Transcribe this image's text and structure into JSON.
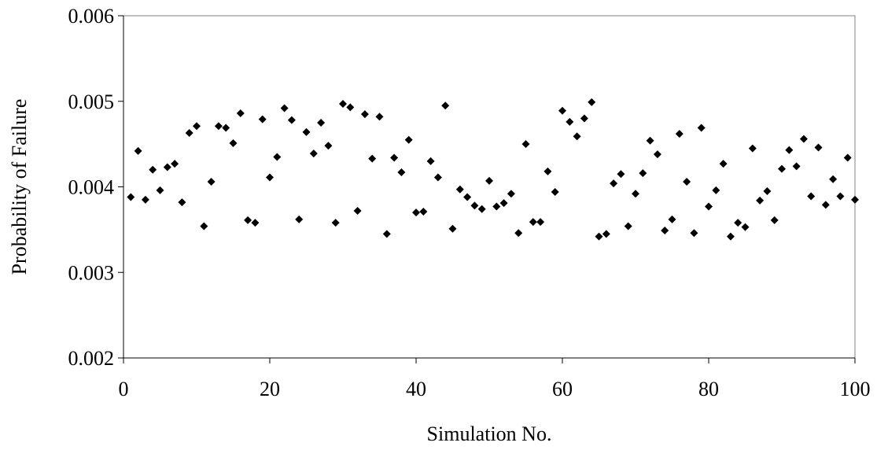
{
  "chart_data": {
    "type": "scatter",
    "title": "",
    "xlabel": "Simulation No.",
    "ylabel": "Probability of Failure",
    "xlim": [
      0,
      100
    ],
    "ylim": [
      0.002,
      0.006
    ],
    "xticks": [
      "0",
      "20",
      "40",
      "60",
      "80",
      "100"
    ],
    "yticks": [
      "0.002",
      "0.003",
      "0.004",
      "0.005",
      "0.006"
    ],
    "grid": false,
    "legend": "none",
    "marker": "diamond",
    "colors": {
      "marker": "#000000",
      "plot_border": "#808080",
      "axis": "#000000"
    },
    "series": [
      {
        "x": [
          1,
          2,
          3,
          4,
          5,
          6,
          7,
          8,
          9,
          10,
          11,
          12,
          13,
          14,
          15,
          16,
          17,
          18,
          19,
          20,
          21,
          22,
          23,
          24,
          25,
          26,
          27,
          28,
          29,
          30,
          31,
          32,
          33,
          34,
          35,
          36,
          37,
          38,
          39,
          40,
          41,
          42,
          43,
          44,
          45,
          46,
          47,
          48,
          49,
          50,
          51,
          52,
          53,
          54,
          55,
          56,
          57,
          58,
          59,
          60,
          61,
          62,
          63,
          64,
          65,
          66,
          67,
          68,
          69,
          70,
          71,
          72,
          73,
          74,
          75,
          76,
          77,
          78,
          79,
          80,
          81,
          82,
          83,
          84,
          85,
          86,
          87,
          88,
          89,
          90,
          91,
          92,
          93,
          94,
          95,
          96,
          97,
          98,
          99,
          100
        ],
        "y": [
          0.00388,
          0.00442,
          0.00385,
          0.0042,
          0.00396,
          0.00423,
          0.00427,
          0.00382,
          0.00463,
          0.00471,
          0.00354,
          0.00406,
          0.00471,
          0.00469,
          0.00451,
          0.00486,
          0.00361,
          0.00358,
          0.00479,
          0.00411,
          0.00435,
          0.00492,
          0.00478,
          0.00362,
          0.00464,
          0.00439,
          0.00475,
          0.00448,
          0.00358,
          0.00497,
          0.00493,
          0.00372,
          0.00485,
          0.00433,
          0.00482,
          0.00345,
          0.00434,
          0.00417,
          0.00455,
          0.0037,
          0.00371,
          0.0043,
          0.00411,
          0.00495,
          0.00351,
          0.00397,
          0.00388,
          0.00378,
          0.00374,
          0.00407,
          0.00377,
          0.00381,
          0.00392,
          0.00346,
          0.0045,
          0.00359,
          0.00359,
          0.00418,
          0.00394,
          0.00489,
          0.00476,
          0.00459,
          0.0048,
          0.00499,
          0.00342,
          0.00345,
          0.00404,
          0.00415,
          0.00354,
          0.00392,
          0.00416,
          0.00454,
          0.00438,
          0.00349,
          0.00362,
          0.00462,
          0.00406,
          0.00346,
          0.00469,
          0.00377,
          0.00396,
          0.00427,
          0.00342,
          0.00358,
          0.00353,
          0.00445,
          0.00384,
          0.00395,
          0.00361,
          0.00421,
          0.00443,
          0.00424,
          0.00456,
          0.00389,
          0.00446,
          0.00379,
          0.00409,
          0.00389,
          0.00434,
          0.00385
        ]
      }
    ]
  }
}
